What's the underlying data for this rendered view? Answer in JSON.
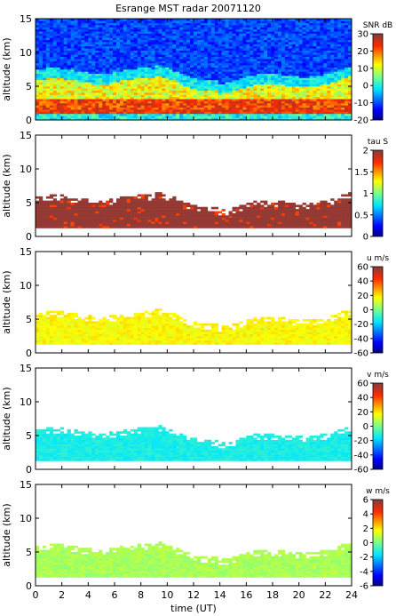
{
  "title": "Esrange MST radar 20071120",
  "chart_data": [
    {
      "type": "heatmap",
      "id": "snr",
      "ylabel": "altitude (km)",
      "ylim": [
        0,
        15
      ],
      "yticks": [
        0,
        5,
        10,
        15
      ],
      "xlim": [
        0,
        24
      ],
      "colorbar": {
        "label": "SNR dB",
        "range": [
          -20,
          30
        ],
        "ticks": [
          -20,
          -10,
          0,
          10,
          20,
          30
        ]
      },
      "field": "signal-to-noise ratio; strong echoes (red) near 1-3 km, weaker (yellow/green) to ~6 km, blue background above"
    },
    {
      "type": "heatmap",
      "id": "tau",
      "ylabel": "altitude (km)",
      "ylim": [
        0,
        15
      ],
      "yticks": [
        0,
        5,
        10,
        15
      ],
      "xlim": [
        0,
        24
      ],
      "colorbar": {
        "label": "tau S",
        "range": [
          0,
          2
        ],
        "ticks": [
          0,
          0.5,
          1,
          1.5,
          2
        ]
      },
      "field": "correlation time; mostly saturated (~2 s, brown) between ~1.5 and 6 km, white where no data"
    },
    {
      "type": "heatmap",
      "id": "u",
      "ylabel": "altitude (km)",
      "ylim": [
        0,
        15
      ],
      "yticks": [
        0,
        5,
        10,
        15
      ],
      "xlim": [
        0,
        24
      ],
      "colorbar": {
        "label": "u m/s",
        "range": [
          -60,
          60
        ],
        "ticks": [
          -60,
          -40,
          -20,
          0,
          20,
          40,
          60
        ]
      },
      "field": "zonal wind; approx +10 to +20 m/s (yellow-green) between ~1.5 and 6 km"
    },
    {
      "type": "heatmap",
      "id": "v",
      "ylabel": "altitude (km)",
      "ylim": [
        0,
        15
      ],
      "yticks": [
        0,
        5,
        10,
        15
      ],
      "xlim": [
        0,
        24
      ],
      "colorbar": {
        "label": "v m/s",
        "range": [
          -60,
          60
        ],
        "ticks": [
          -60,
          -40,
          -20,
          0,
          20,
          40,
          60
        ]
      },
      "field": "meridional wind; approx -10 to -20 m/s (cyan) between ~1.5 and 6 km"
    },
    {
      "type": "heatmap",
      "id": "w",
      "ylabel": "altitude (km)",
      "ylim": [
        0,
        15
      ],
      "yticks": [
        0,
        5,
        10,
        15
      ],
      "xlim": [
        0,
        24
      ],
      "xlabel": "time (UT)",
      "xticks": [
        0,
        2,
        4,
        6,
        8,
        10,
        12,
        14,
        16,
        18,
        20,
        22,
        24
      ],
      "colorbar": {
        "label": "w m/s",
        "range": [
          -6,
          6
        ],
        "ticks": [
          -6,
          -4,
          -2,
          0,
          2,
          4,
          6
        ]
      },
      "field": "vertical wind; approx 0 to +1 m/s (light green) between ~1.5 and 6 km"
    }
  ]
}
